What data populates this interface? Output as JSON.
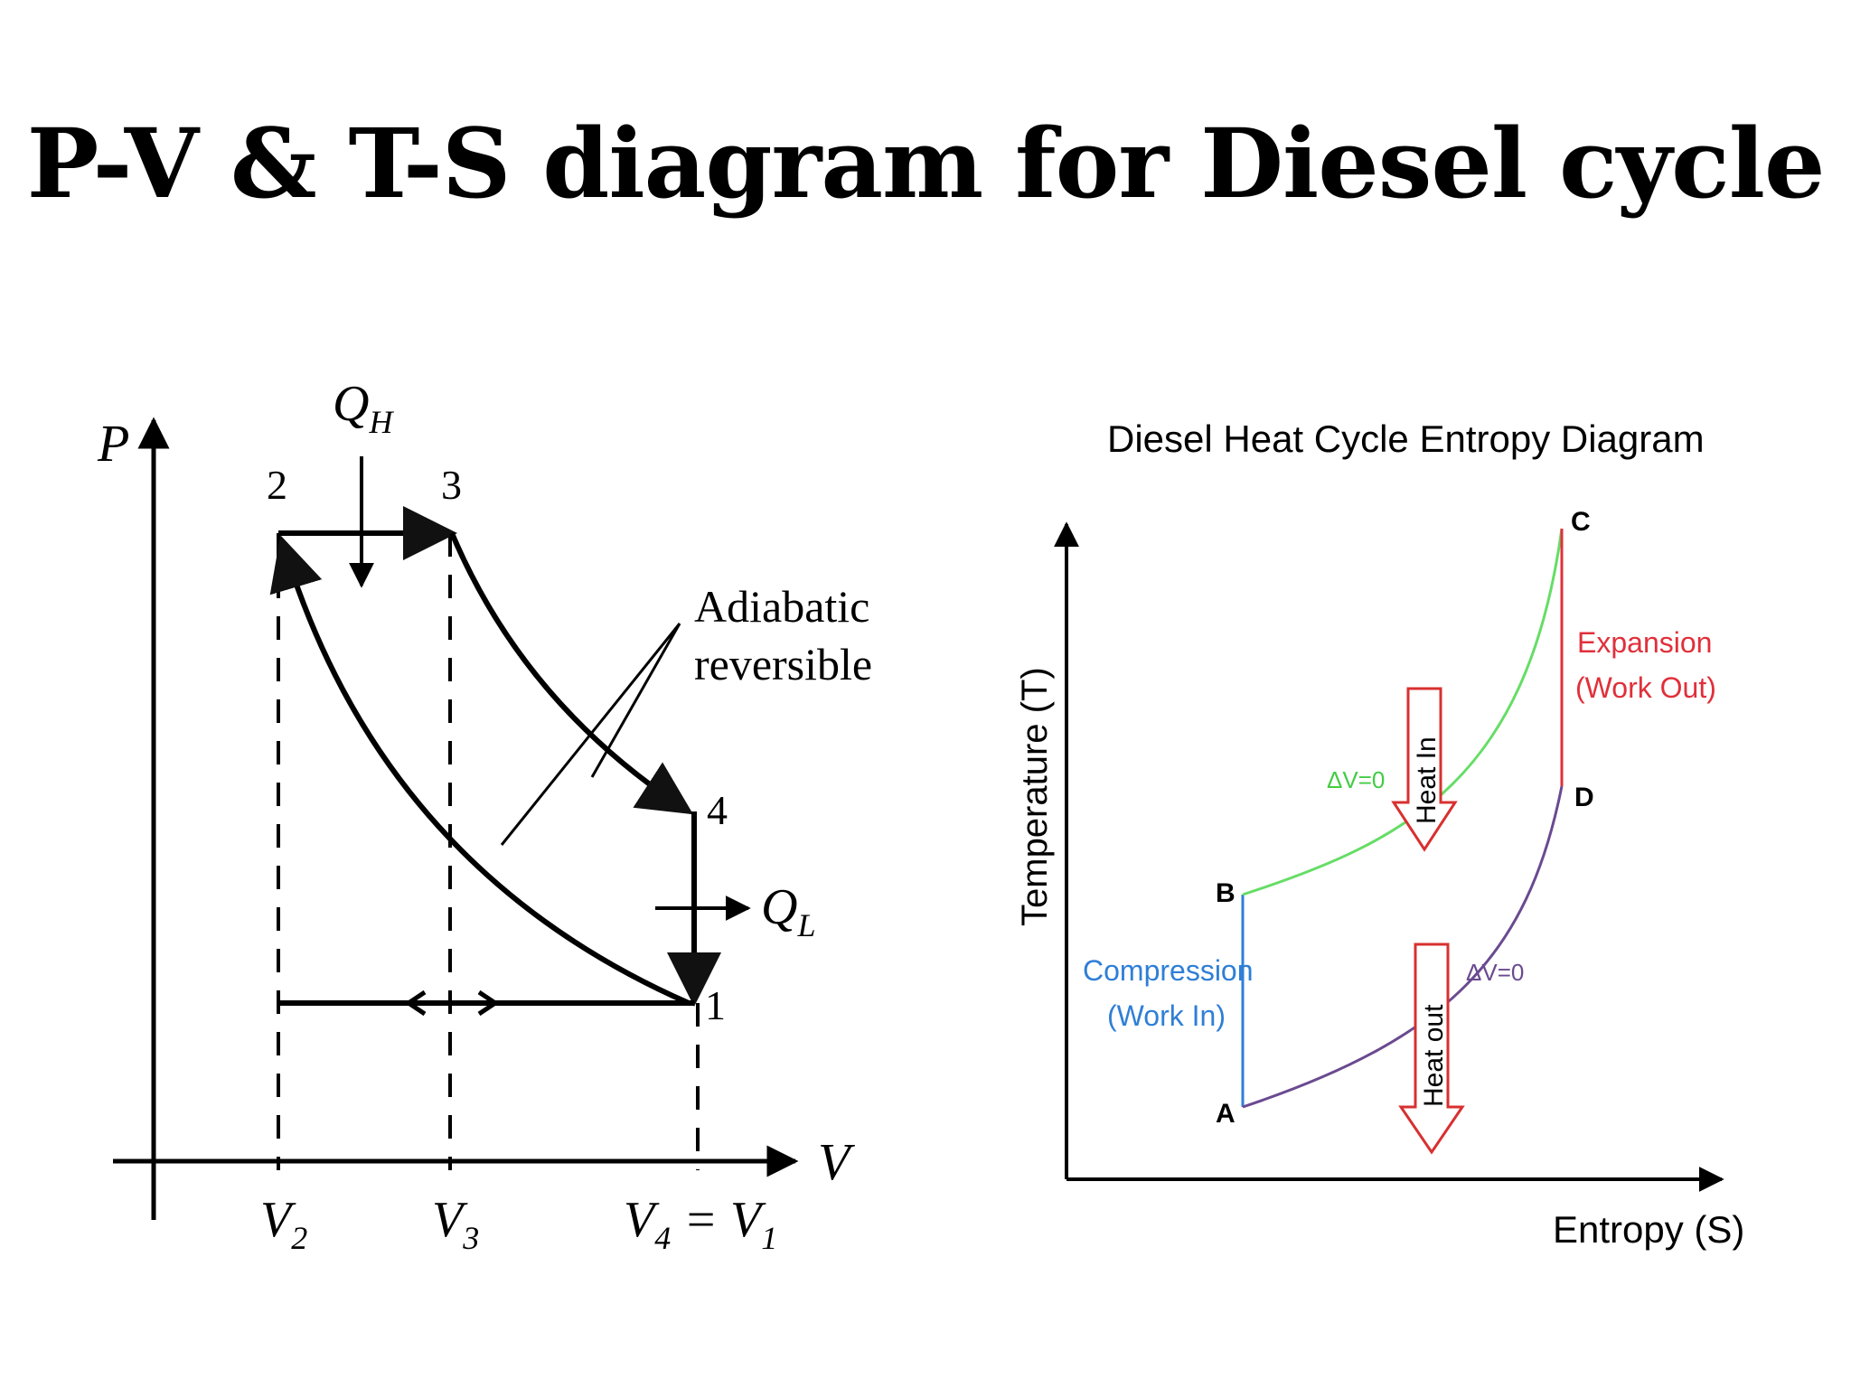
{
  "slide": {
    "title": "P-V & T-S diagram for Diesel cycle"
  },
  "pv_diagram": {
    "axis_p": "P",
    "axis_v": "V",
    "point_labels": [
      "2",
      "3",
      "4",
      "1"
    ],
    "heat_in": "Q",
    "heat_in_sub": "H",
    "heat_out": "Q",
    "heat_out_sub": "L",
    "annotation_line1": "Adiabatic",
    "annotation_line2": "reversible",
    "v2": "V",
    "v2_sub": "2",
    "v3": "V",
    "v3_sub": "3",
    "v4": "V",
    "v4_sub": "4",
    "eq": "=",
    "v1": "V",
    "v1_sub": "1"
  },
  "ts_diagram": {
    "title": "Diesel Heat Cycle Entropy Diagram",
    "y_label": "Temperature  (T)",
    "x_label": "Entropy (S)",
    "points": [
      "A",
      "B",
      "C",
      "D"
    ],
    "compression_line1": "Compression",
    "compression_line2": "(Work In)",
    "expansion_line1": "Expansion",
    "expansion_line2": "(Work Out)",
    "dv_upper": "ΔV=0",
    "dv_lower": "ΔV=0",
    "heat_in": "Heat In",
    "heat_out": "Heat out",
    "colors": {
      "compression": "#2f7fd6",
      "heat_in_curve": "#66dd66",
      "expansion": "#e0303a",
      "heat_out_curve": "#6a4a90",
      "arrow": "#d83030"
    }
  }
}
